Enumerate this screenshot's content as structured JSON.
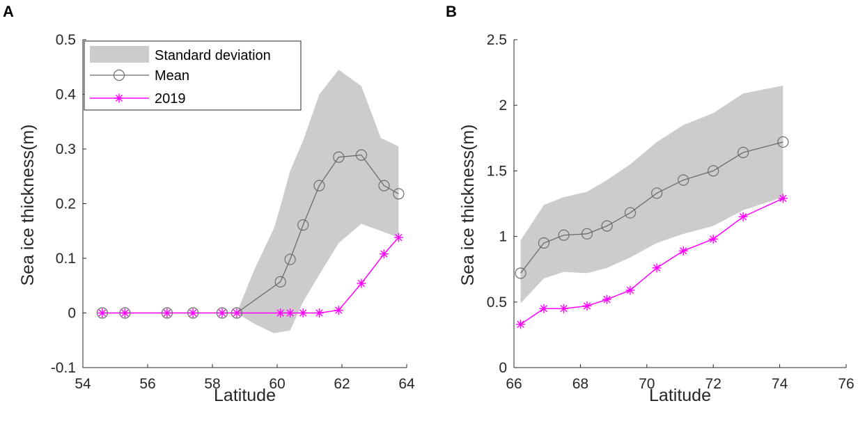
{
  "colors": {
    "band": "#cccccc",
    "mean": "#6b6b6b",
    "year": "#ff00ff",
    "axis": "#262626"
  },
  "chart_data": [
    {
      "id": "A",
      "panel_label": "A",
      "type": "line",
      "xlabel": "Latitude",
      "ylabel": "Sea ice thickness(m)",
      "xlim": [
        54,
        64
      ],
      "ylim": [
        -0.1,
        0.5
      ],
      "xticks": [
        54,
        56,
        58,
        60,
        62,
        64
      ],
      "yticks": [
        -0.1,
        0,
        0.1,
        0.2,
        0.3,
        0.4,
        0.5
      ],
      "xtick_labels": [
        "54",
        "56",
        "58",
        "60",
        "62",
        "64"
      ],
      "ytick_labels": [
        "-0.1",
        "0",
        "0.1",
        "0.2",
        "0.3",
        "0.4",
        "0.5"
      ],
      "legend": {
        "position": "top-left",
        "entries": [
          "Standard deviation",
          "Mean",
          "2019"
        ]
      },
      "band": {
        "name": "Standard deviation",
        "x": [
          58.75,
          59.3,
          59.9,
          60.1,
          60.4,
          60.8,
          61.3,
          61.9,
          62.6,
          63.2,
          63.75
        ],
        "upper": [
          0,
          0.08,
          0.155,
          0.195,
          0.26,
          0.315,
          0.4,
          0.445,
          0.415,
          0.32,
          0.305
        ],
        "lower": [
          0,
          -0.02,
          -0.037,
          -0.035,
          -0.032,
          0.02,
          0.07,
          0.128,
          0.163,
          0.15,
          0.138
        ]
      },
      "series": [
        {
          "name": "Mean",
          "marker": "circle",
          "x": [
            54.6,
            55.3,
            56.6,
            57.4,
            58.3,
            58.75,
            60.1,
            60.4,
            60.8,
            61.3,
            61.9,
            62.6,
            63.3,
            63.75
          ],
          "values": [
            0,
            0,
            0,
            0,
            0,
            0,
            0.057,
            0.098,
            0.161,
            0.233,
            0.285,
            0.289,
            0.233,
            0.218
          ]
        },
        {
          "name": "2019",
          "marker": "asterisk",
          "x": [
            54.6,
            55.3,
            56.6,
            57.4,
            58.3,
            58.75,
            60.1,
            60.4,
            60.8,
            61.3,
            61.9,
            62.6,
            63.3,
            63.75
          ],
          "values": [
            0,
            0,
            0,
            0,
            0,
            0,
            0,
            0,
            0,
            0,
            0.005,
            0.054,
            0.108,
            0.138
          ]
        }
      ]
    },
    {
      "id": "B",
      "panel_label": "B",
      "type": "line",
      "xlabel": "Latitude",
      "ylabel": "Sea ice thickness(m)",
      "xlim": [
        66,
        76
      ],
      "ylim": [
        0,
        2.5
      ],
      "xticks": [
        66,
        68,
        70,
        72,
        74,
        76
      ],
      "yticks": [
        0,
        0.5,
        1,
        1.5,
        2,
        2.5
      ],
      "xtick_labels": [
        "66",
        "68",
        "70",
        "72",
        "74",
        "76"
      ],
      "ytick_labels": [
        "0",
        "0.5",
        "1",
        "1.5",
        "2",
        "2.5"
      ],
      "legend": null,
      "band": {
        "name": "Standard deviation",
        "x": [
          66.2,
          66.9,
          67.5,
          68.2,
          68.8,
          69.5,
          70.3,
          71.1,
          72.0,
          72.9,
          74.1
        ],
        "upper": [
          0.97,
          1.24,
          1.3,
          1.34,
          1.43,
          1.55,
          1.72,
          1.85,
          1.94,
          2.09,
          2.15
        ],
        "lower": [
          0.49,
          0.68,
          0.73,
          0.72,
          0.76,
          0.84,
          0.95,
          1.02,
          1.08,
          1.2,
          1.3
        ]
      },
      "series": [
        {
          "name": "Mean",
          "marker": "circle",
          "x": [
            66.2,
            66.9,
            67.5,
            68.2,
            68.8,
            69.5,
            70.3,
            71.1,
            72.0,
            72.9,
            74.1
          ],
          "values": [
            0.72,
            0.95,
            1.01,
            1.02,
            1.08,
            1.18,
            1.33,
            1.43,
            1.5,
            1.64,
            1.72
          ]
        },
        {
          "name": "2019",
          "marker": "asterisk",
          "x": [
            66.2,
            66.9,
            67.5,
            68.2,
            68.8,
            69.5,
            70.3,
            71.1,
            72.0,
            72.9,
            74.1
          ],
          "values": [
            0.33,
            0.45,
            0.45,
            0.47,
            0.52,
            0.59,
            0.76,
            0.89,
            0.98,
            1.15,
            1.29
          ]
        }
      ]
    }
  ]
}
